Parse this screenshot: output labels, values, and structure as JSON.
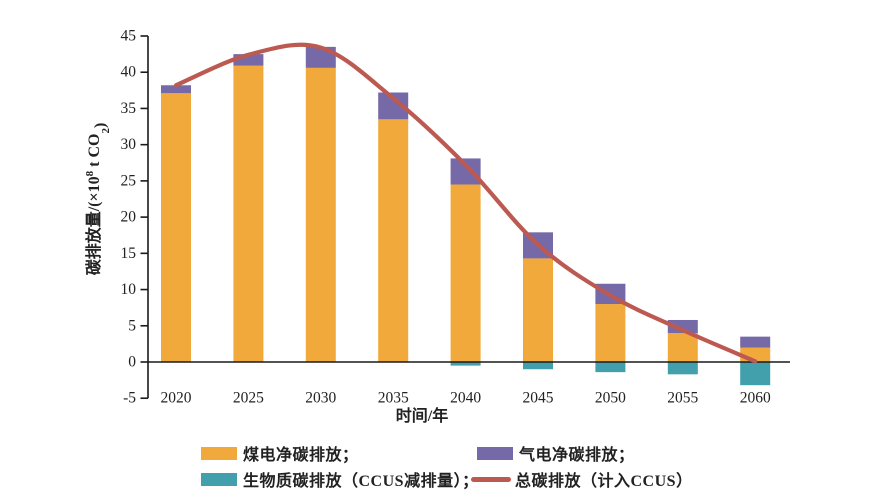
{
  "chart_data": {
    "type": "bar",
    "subtype": "stacked-bar-with-line-overlay",
    "title": "",
    "xlabel": "时间/年",
    "ylabel": "碳排放量/(×10⁸ t CO₂)",
    "ylabel_parts": [
      {
        "t": "碳排放量/(×10",
        "style": "normal"
      },
      {
        "t": "8",
        "style": "sup"
      },
      {
        "t": " t CO",
        "style": "normal"
      },
      {
        "t": "2",
        "style": "sub"
      },
      {
        "t": ")",
        "style": "normal"
      }
    ],
    "categories": [
      "2020",
      "2025",
      "2030",
      "2035",
      "2040",
      "2045",
      "2050",
      "2055",
      "2060"
    ],
    "series": [
      {
        "name": "煤电净碳排放",
        "type": "bar",
        "stack": "emissions",
        "color": "#F2A93C",
        "values": [
          37.1,
          40.9,
          40.6,
          33.5,
          24.5,
          14.3,
          8.0,
          4.0,
          2.0
        ]
      },
      {
        "name": "气电净碳排放",
        "type": "bar",
        "stack": "emissions",
        "color": "#7569A7",
        "values": [
          1.1,
          1.6,
          2.9,
          3.7,
          3.6,
          3.6,
          2.8,
          1.8,
          1.5
        ]
      },
      {
        "name": "生物质碳排放（CCUS减排量）",
        "type": "bar",
        "stack": "emissions",
        "color": "#41A0AC",
        "values": [
          0,
          0,
          0,
          0,
          -0.5,
          -1.0,
          -1.4,
          -1.7,
          -3.2
        ]
      },
      {
        "name": "总碳排放（计入CCUS）",
        "type": "line",
        "color": "#BC5A52",
        "values": [
          38.2,
          42.4,
          43.4,
          36.4,
          27.2,
          16.2,
          9.2,
          4.4,
          0.1
        ]
      }
    ],
    "ylim": [
      -5,
      45
    ],
    "yticks": [
      -5,
      0,
      5,
      10,
      15,
      20,
      25,
      30,
      35,
      40,
      45
    ],
    "grid": false,
    "legend_position": "bottom",
    "axis_color": "#1A1A1A",
    "text_color": "#222222"
  },
  "legend": {
    "items": [
      {
        "label": "煤电净碳排放；",
        "swatch": "rect",
        "color": "#F2A93C"
      },
      {
        "label": "气电净碳排放；",
        "swatch": "rect",
        "color": "#7569A7"
      },
      {
        "label": "生物质碳排放（CCUS减排量）；",
        "swatch": "rect",
        "color": "#41A0AC"
      },
      {
        "label": "总碳排放（计入CCUS）",
        "swatch": "line",
        "color": "#BC5A52"
      }
    ]
  }
}
